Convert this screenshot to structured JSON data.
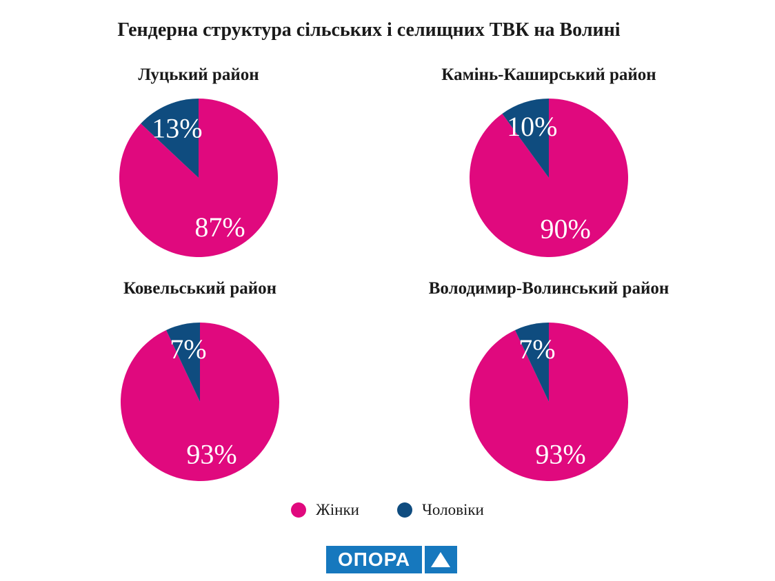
{
  "page": {
    "title": "Гендерна структура сільських і селищних ТВК на Волині"
  },
  "colors": {
    "women_pink": "#e0097e",
    "men_navy": "#0f4c7f",
    "logo_blue": "#1678be",
    "pie_label_text": "#ffffff",
    "text": "#1a1a1a",
    "background": "#ffffff"
  },
  "chart_data": [
    {
      "type": "pie",
      "title": "Луцький район",
      "start_angle": "top",
      "direction": "clockwise",
      "labels_inside": true,
      "slices": [
        {
          "name": "Жінки",
          "value": 87,
          "label": "87%",
          "color": "#e0097e"
        },
        {
          "name": "Чоловіки",
          "value": 13,
          "label": "13%",
          "color": "#0f4c7f"
        }
      ]
    },
    {
      "type": "pie",
      "title": "Камінь-Каширський район",
      "start_angle": "top",
      "direction": "clockwise",
      "labels_inside": true,
      "slices": [
        {
          "name": "Жінки",
          "value": 90,
          "label": "90%",
          "color": "#e0097e"
        },
        {
          "name": "Чоловіки",
          "value": 10,
          "label": "10%",
          "color": "#0f4c7f"
        }
      ]
    },
    {
      "type": "pie",
      "title": "Ковельський район",
      "start_angle": "top",
      "direction": "clockwise",
      "labels_inside": true,
      "slices": [
        {
          "name": "Жінки",
          "value": 93,
          "label": "93%",
          "color": "#e0097e"
        },
        {
          "name": "Чоловіки",
          "value": 7,
          "label": "7%",
          "color": "#0f4c7f"
        }
      ]
    },
    {
      "type": "pie",
      "title": "Володимир-Волинський район",
      "start_angle": "top",
      "direction": "clockwise",
      "labels_inside": true,
      "slices": [
        {
          "name": "Жінки",
          "value": 93,
          "label": "93%",
          "color": "#e0097e"
        },
        {
          "name": "Чоловіки",
          "value": 7,
          "label": "7%",
          "color": "#0f4c7f"
        }
      ]
    }
  ],
  "legend": {
    "items": [
      {
        "label": "Жінки",
        "color": "#e0097e"
      },
      {
        "label": "Чоловіки",
        "color": "#0f4c7f"
      }
    ]
  },
  "logo": {
    "text": "ОПОРА",
    "icon": "triangle-up-icon"
  }
}
